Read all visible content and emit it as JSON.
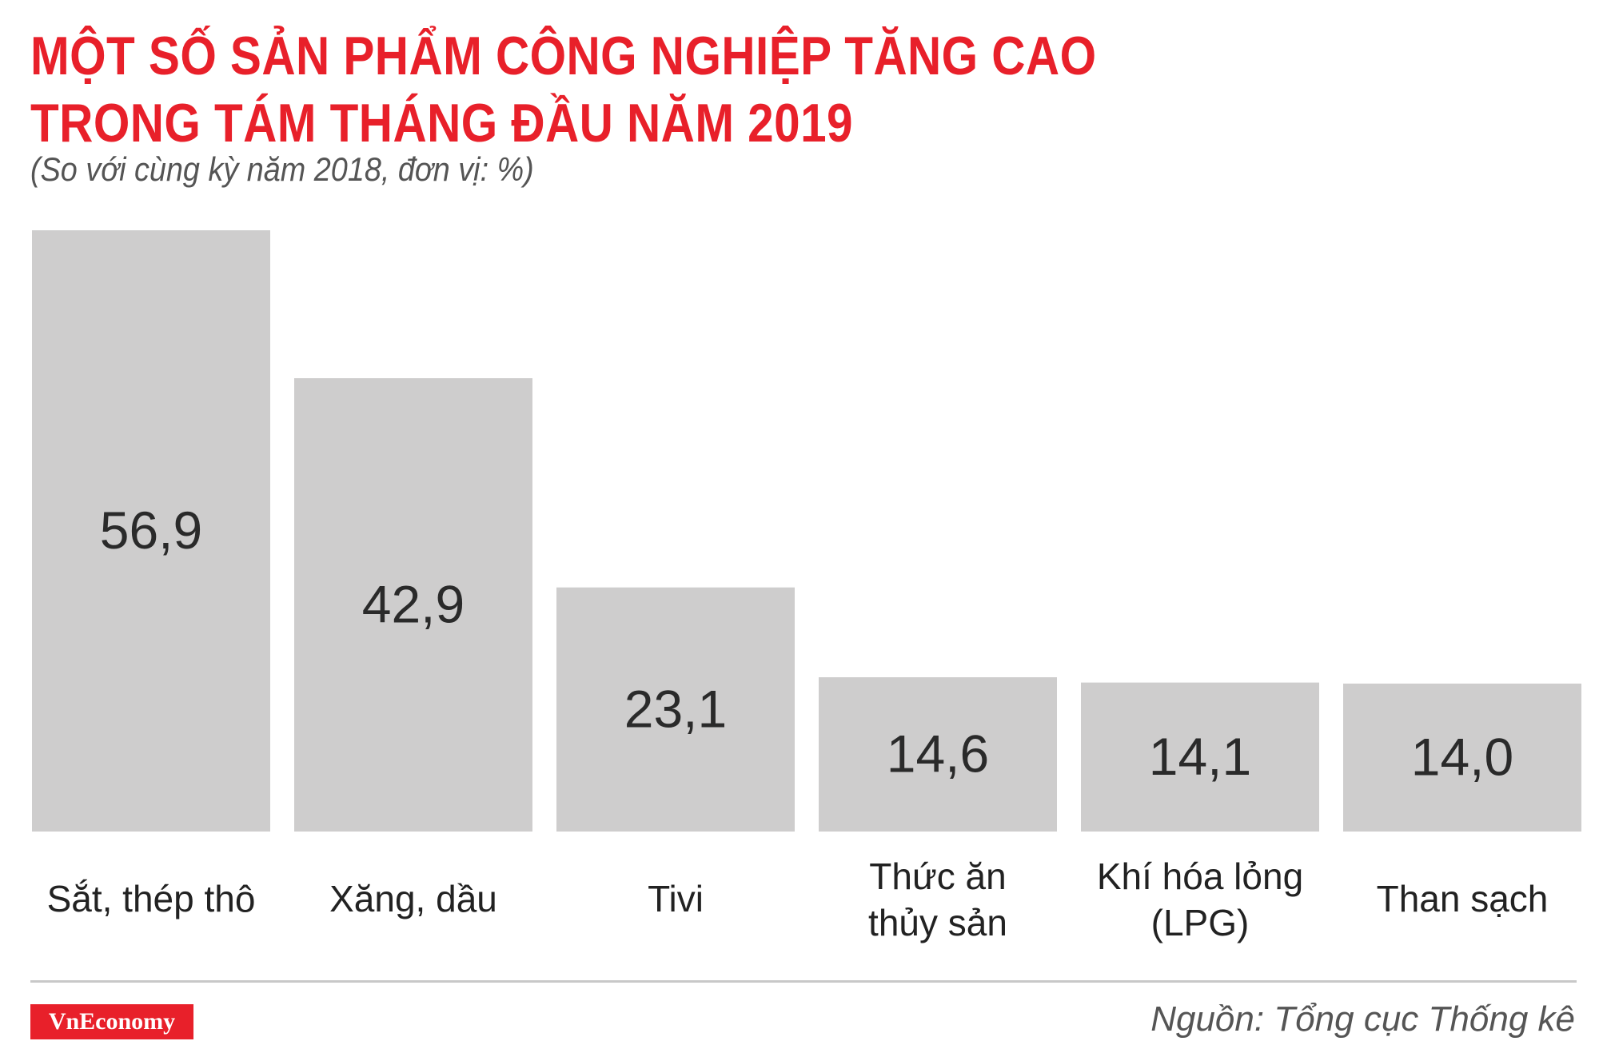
{
  "header": {
    "title_line1": "MỘT SỐ SẢN PHẨM CÔNG NGHIỆP TĂNG CAO",
    "title_line2": "TRONG TÁM THÁNG ĐẦU NĂM 2019",
    "subtitle": "(So với cùng kỳ năm 2018, đơn vị: %)"
  },
  "footer": {
    "logo_text": "VnEconomy",
    "source": "Nguồn: Tổng cục Thống kê"
  },
  "colors": {
    "title": "#e8202a",
    "bar": "#cecdcd",
    "logo_bg": "#e8202a"
  },
  "chart_data": {
    "type": "bar",
    "title": "MỘT SỐ SẢN PHẨM CÔNG NGHIỆP TĂNG CAO TRONG TÁM THÁNG ĐẦU NĂM 2019",
    "subtitle": "(So với cùng kỳ năm 2018, đơn vị: %)",
    "categories": [
      [
        "Sắt, thép thô"
      ],
      [
        "Xăng, dầu"
      ],
      [
        "Tivi"
      ],
      [
        "Thức ăn",
        "thủy sản"
      ],
      [
        "Khí hóa lỏng",
        "(LPG)"
      ],
      [
        "Than sạch"
      ]
    ],
    "values": [
      56.9,
      42.9,
      23.1,
      14.6,
      14.1,
      14.0
    ],
    "value_labels": [
      "56,9",
      "42,9",
      "23,1",
      "14,6",
      "14,1",
      "14,0"
    ],
    "unit": "%",
    "ylim": [
      0,
      56.9
    ],
    "grid": false,
    "legend": "none",
    "axes_visible": false
  }
}
